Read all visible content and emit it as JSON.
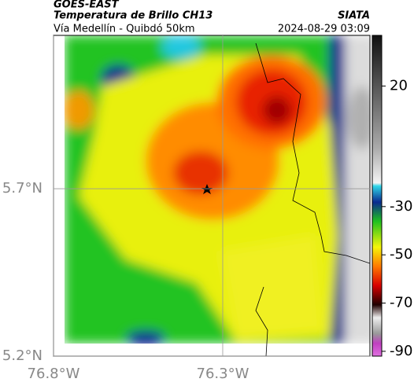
{
  "header": {
    "source": "GOES-EAST",
    "title": "Temperatura de Brillo CH13",
    "subtitle": "Vía Medellín - Quibdó 50km",
    "org": "SIATA",
    "datetime": "2024-08-29 03:09"
  },
  "map": {
    "xlim": [
      -76.8,
      -75.865
    ],
    "ylim": [
      5.2,
      6.158
    ],
    "xticks": [
      {
        "value": -76.8,
        "label": "76.8°W"
      },
      {
        "value": -76.3,
        "label": "76.3°W"
      }
    ],
    "yticks": [
      {
        "value": 5.2,
        "label": "5.2°N"
      },
      {
        "value": 5.7,
        "label": "5.7°N"
      }
    ],
    "grid": true
  },
  "colorbar": {
    "lim": [
      -92,
      41
    ],
    "ticks": [
      20,
      -30,
      -50,
      -70,
      -90
    ]
  }
}
